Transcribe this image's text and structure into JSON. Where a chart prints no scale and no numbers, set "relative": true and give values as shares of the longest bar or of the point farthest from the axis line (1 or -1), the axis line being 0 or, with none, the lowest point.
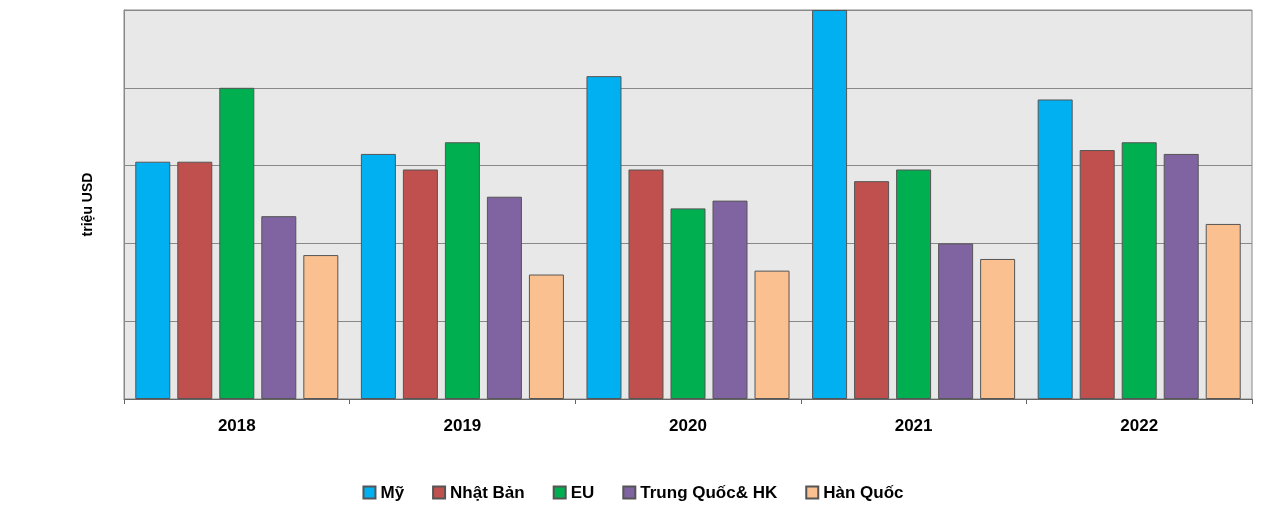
{
  "chart_data": {
    "type": "bar",
    "ylabel": "triệu USD",
    "relative": true,
    "categories": [
      "2018",
      "2019",
      "2020",
      "2021",
      "2022"
    ],
    "series": [
      {
        "name": "Mỹ",
        "color": "#00b0f0",
        "values": [
          0.61,
          0.63,
          0.83,
          1,
          0.77
        ]
      },
      {
        "name": "Nhật Bản",
        "color": "#c0504d",
        "values": [
          0.61,
          0.59,
          0.59,
          0.56,
          0.64
        ]
      },
      {
        "name": "EU",
        "color": "#00b050",
        "values": [
          0.8,
          0.66,
          0.49,
          0.59,
          0.66
        ]
      },
      {
        "name": "Trung Quốc& HK",
        "color": "#8064a2",
        "values": [
          0.47,
          0.52,
          0.51,
          0.4,
          0.63
        ]
      },
      {
        "name": "Hàn Quốc",
        "color": "#fac090",
        "values": [
          0.37,
          0.32,
          0.33,
          0.36,
          0.45
        ]
      }
    ],
    "grid": "y",
    "legend": "bottom"
  }
}
